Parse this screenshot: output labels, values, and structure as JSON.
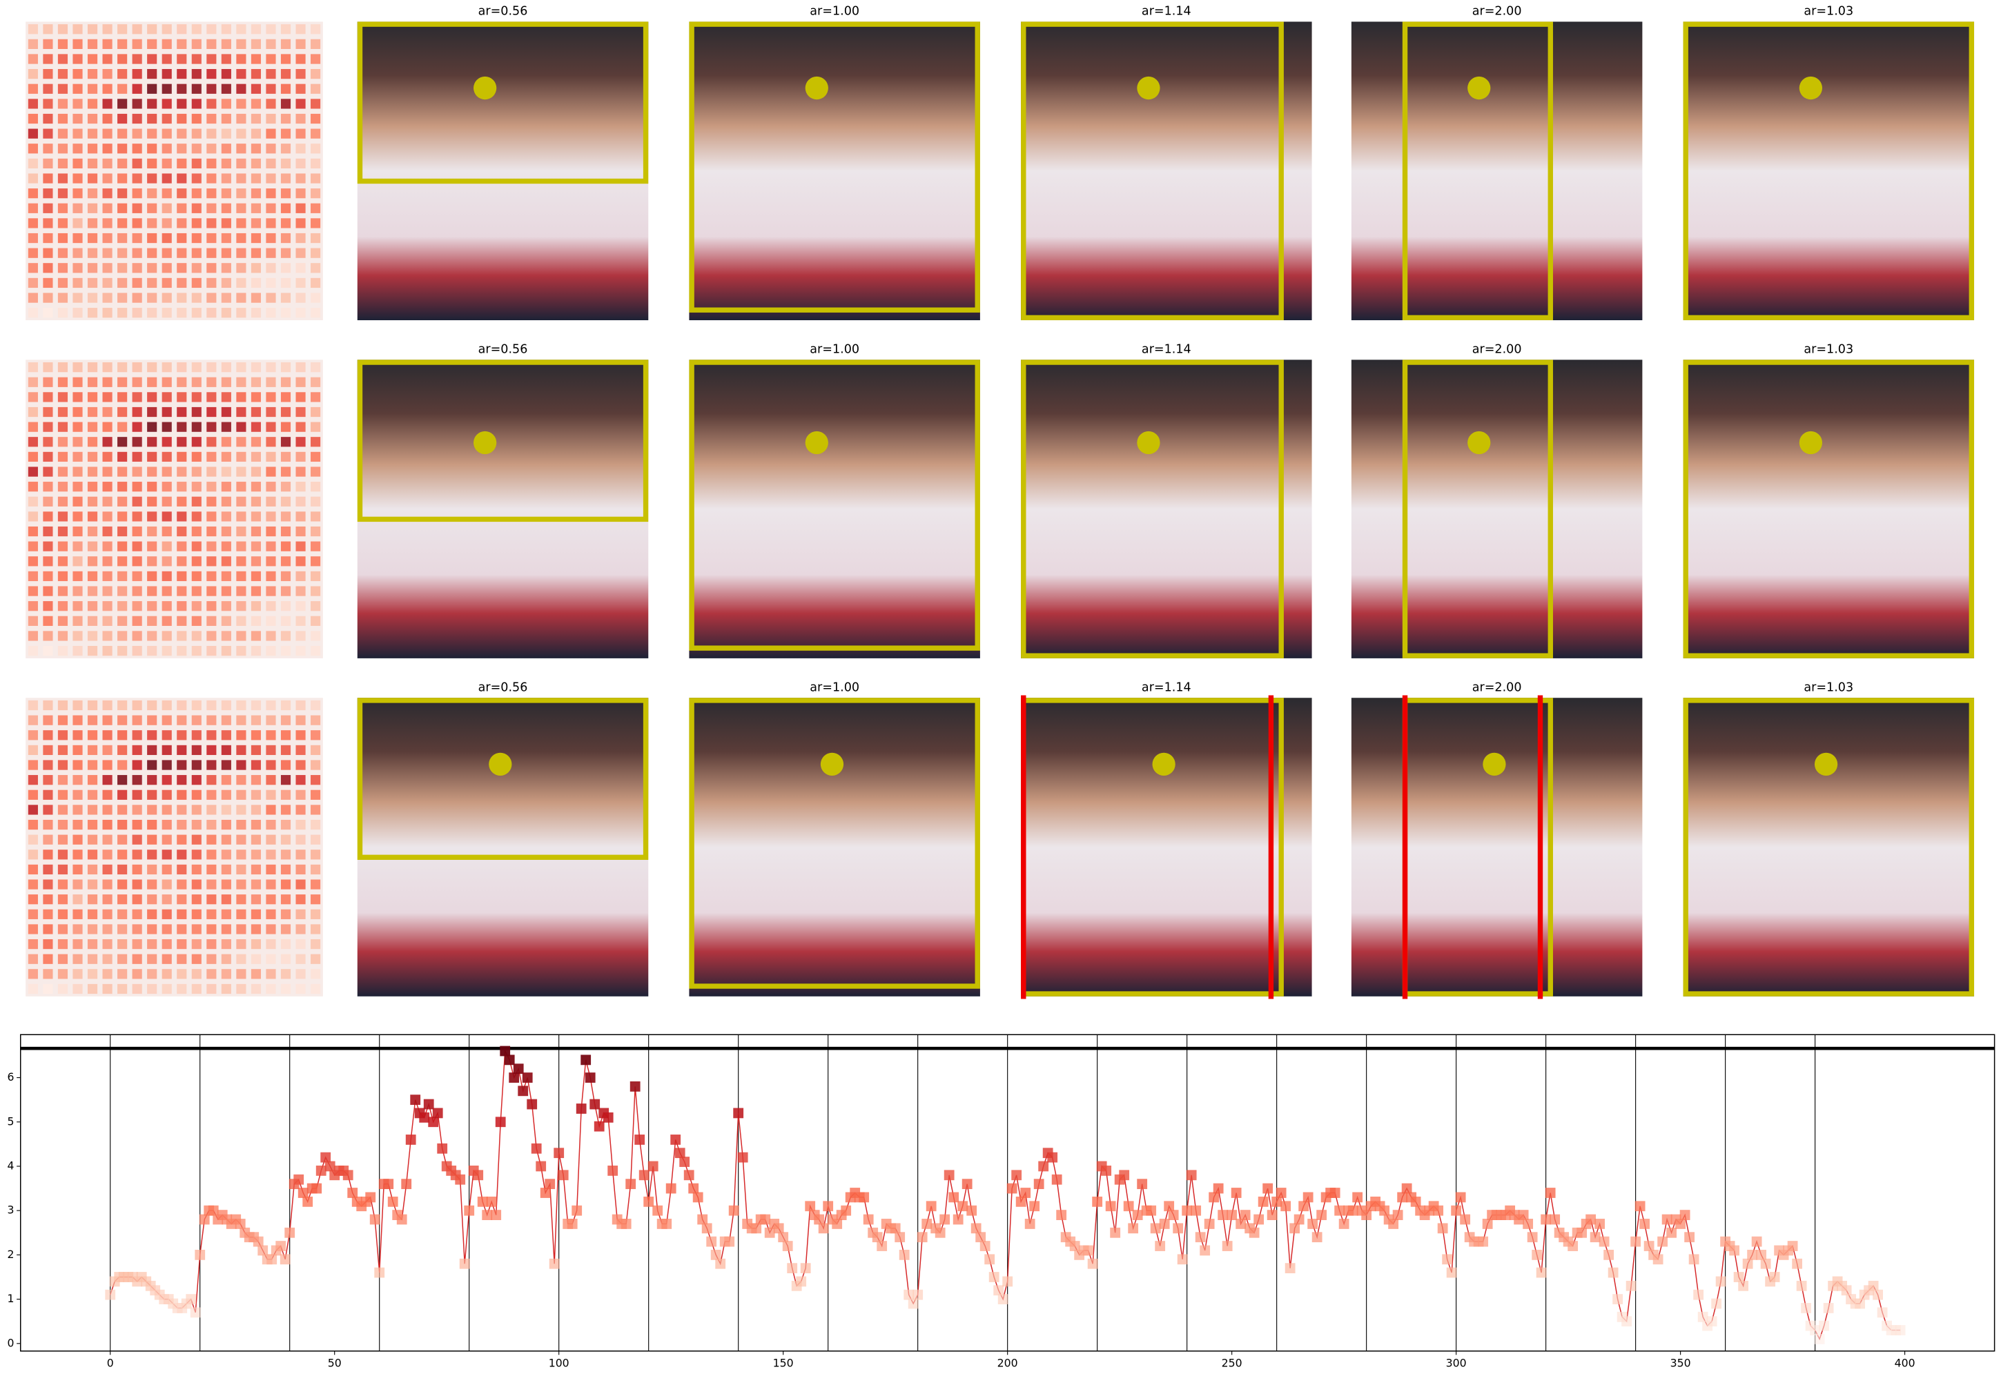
{
  "image_grid": {
    "rows": [
      {
        "titles": [
          "ar=0.56",
          "ar=1.00",
          "ar=1.14",
          "ar=2.00",
          "ar=1.03"
        ]
      },
      {
        "titles": [
          "ar=0.56",
          "ar=1.00",
          "ar=1.14",
          "ar=2.00",
          "ar=1.03"
        ]
      },
      {
        "titles": [
          "ar=0.56",
          "ar=1.00",
          "ar=1.14",
          "ar=2.00",
          "ar=1.03"
        ]
      }
    ]
  },
  "chart_data": {
    "type": "line",
    "color": "#d62728",
    "values": [
      1.1,
      1.4,
      1.5,
      1.5,
      1.5,
      1.5,
      1.4,
      1.5,
      1.4,
      1.3,
      1.2,
      1.1,
      1.0,
      1.0,
      0.9,
      0.8,
      0.8,
      0.9,
      1.0,
      0.7,
      2.0,
      2.8,
      3.0,
      3.0,
      2.8,
      2.9,
      2.8,
      2.7,
      2.8,
      2.7,
      2.5,
      2.4,
      2.4,
      2.3,
      2.1,
      1.9,
      1.9,
      2.1,
      2.2,
      1.9,
      2.5,
      3.6,
      3.7,
      3.4,
      3.2,
      3.5,
      3.5,
      3.9,
      4.2,
      4.0,
      3.8,
      3.9,
      3.9,
      3.8,
      3.4,
      3.2,
      3.1,
      3.2,
      3.3,
      2.8,
      1.6,
      3.6,
      3.6,
      3.2,
      2.9,
      2.8,
      3.6,
      4.6,
      5.5,
      5.2,
      5.1,
      5.4,
      5.0,
      5.2,
      4.4,
      4.0,
      3.9,
      3.8,
      3.7,
      1.8,
      3.0,
      3.9,
      3.8,
      3.2,
      2.9,
      3.2,
      2.9,
      5.0,
      6.6,
      6.4,
      6.0,
      6.2,
      5.7,
      6.0,
      5.4,
      4.4,
      4.0,
      3.4,
      3.6,
      1.8,
      4.3,
      3.8,
      2.7,
      2.7,
      3.0,
      5.3,
      6.4,
      6.0,
      5.4,
      4.9,
      5.2,
      5.1,
      3.9,
      2.8,
      2.7,
      2.7,
      3.6,
      5.8,
      4.6,
      3.8,
      3.2,
      4.0,
      3.0,
      2.7,
      2.7,
      3.5,
      4.6,
      4.3,
      4.1,
      3.8,
      3.5,
      3.3,
      2.8,
      2.6,
      2.3,
      2.0,
      1.8,
      2.3,
      2.3,
      3.0,
      5.2,
      4.2,
      2.7,
      2.6,
      2.6,
      2.8,
      2.8,
      2.5,
      2.7,
      2.6,
      2.4,
      2.2,
      1.7,
      1.3,
      1.4,
      1.7,
      3.1,
      2.9,
      2.8,
      2.6,
      3.1,
      2.8,
      2.7,
      2.9,
      3.0,
      3.3,
      3.4,
      3.3,
      3.3,
      2.8,
      2.5,
      2.4,
      2.2,
      2.7,
      2.6,
      2.6,
      2.4,
      2.0,
      1.1,
      0.9,
      1.1,
      2.4,
      2.7,
      3.1,
      2.6,
      2.5,
      2.8,
      3.8,
      3.3,
      2.8,
      3.1,
      3.6,
      3.0,
      2.6,
      2.4,
      2.2,
      1.9,
      1.5,
      1.2,
      1.0,
      1.4,
      3.5,
      3.8,
      3.2,
      3.4,
      2.7,
      3.1,
      3.6,
      4.0,
      4.3,
      4.2,
      3.7,
      2.9,
      2.4,
      2.3,
      2.2,
      2.0,
      2.1,
      2.1,
      1.8,
      3.2,
      4.0,
      3.9,
      3.1,
      2.5,
      3.7,
      3.8,
      3.1,
      2.6,
      2.9,
      3.6,
      3.0,
      3.0,
      2.6,
      2.2,
      2.7,
      3.1,
      2.9,
      2.6,
      1.9,
      3.0,
      3.8,
      3.0,
      2.4,
      2.1,
      2.7,
      3.3,
      3.5,
      2.9,
      2.2,
      2.9,
      3.4,
      2.7,
      2.9,
      2.6,
      2.5,
      2.8,
      3.2,
      3.5,
      2.9,
      3.2,
      3.4,
      3.1,
      1.7,
      2.6,
      2.8,
      3.1,
      3.3,
      2.7,
      2.4,
      2.9,
      3.3,
      3.4,
      3.4,
      3.0,
      2.7,
      3.0,
      3.0,
      3.3,
      3.0,
      2.9,
      3.1,
      3.2,
      3.1,
      3.0,
      2.8,
      2.7,
      2.9,
      3.3,
      3.5,
      3.3,
      3.2,
      3.0,
      2.9,
      3.0,
      3.1,
      3.0,
      2.6,
      1.9,
      1.6,
      3.0,
      3.3,
      2.8,
      2.4,
      2.3,
      2.3,
      2.3,
      2.7,
      2.9,
      2.9,
      2.9,
      2.9,
      3.0,
      2.9,
      2.8,
      2.9,
      2.7,
      2.4,
      2.0,
      1.6,
      2.8,
      3.4,
      2.8,
      2.5,
      2.4,
      2.3,
      2.2,
      2.5,
      2.5,
      2.7,
      2.8,
      2.4,
      2.7,
      2.3,
      2.0,
      1.6,
      1.0,
      0.6,
      0.5,
      1.3,
      2.3,
      3.1,
      2.7,
      2.2,
      2.0,
      1.9,
      2.3,
      2.8,
      2.5,
      2.8,
      2.7,
      2.9,
      2.4,
      1.9,
      1.1,
      0.6,
      0.4,
      0.5,
      0.9,
      1.4,
      2.3,
      2.2,
      2.1,
      1.5,
      1.3,
      1.8,
      2.0,
      2.3,
      2.0,
      1.8,
      1.4,
      1.5,
      2.1,
      2.0,
      2.1,
      2.2,
      1.8,
      1.3,
      0.8,
      0.4,
      0.3,
      0.1,
      0.4,
      0.8,
      1.3,
      1.4,
      1.3,
      1.2,
      1.0,
      0.9,
      0.9,
      1.1,
      1.2,
      1.3,
      1.1,
      0.7,
      0.4,
      0.3,
      0.3,
      0.3
    ],
    "vlines": [
      0,
      20,
      40,
      60,
      80,
      100,
      120,
      140,
      160,
      180,
      200,
      220,
      240,
      260,
      280,
      300,
      320,
      340,
      360,
      380
    ],
    "hline": 6.66,
    "xlim": [
      -20,
      420
    ],
    "ylim": [
      -0.17,
      6.97
    ],
    "xticks": [
      0,
      50,
      100,
      150,
      200,
      250,
      300,
      350,
      400
    ],
    "yticks": [
      0,
      1,
      2,
      3,
      4,
      5,
      6
    ]
  }
}
